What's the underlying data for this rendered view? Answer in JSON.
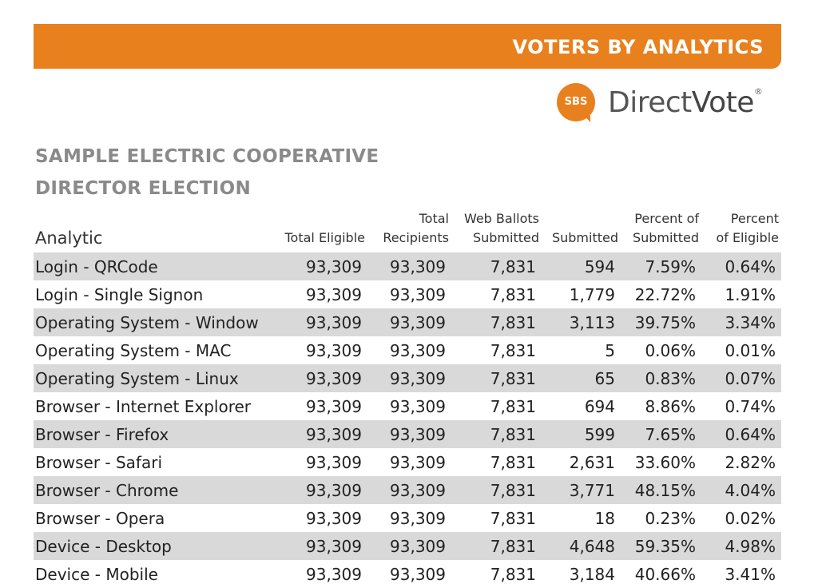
{
  "header": {
    "title": "VOTERS BY ANALYTICS",
    "brand_color": "#e8801e"
  },
  "logo": {
    "badge": "SBS",
    "name_light": "Direct",
    "name_bold": "Vote",
    "reg": "®"
  },
  "doc": {
    "title_line1": "SAMPLE ELECTRIC COOPERATIVE",
    "title_line2": "DIRECTOR ELECTION"
  },
  "table": {
    "columns": [
      {
        "line1": "",
        "line2": "Analytic"
      },
      {
        "line1": "",
        "line2": "Total Eligible"
      },
      {
        "line1": "Total",
        "line2": "Recipients"
      },
      {
        "line1": "Web Ballots",
        "line2": "Submitted"
      },
      {
        "line1": "",
        "line2": "Submitted"
      },
      {
        "line1": "Percent of",
        "line2": "Submitted"
      },
      {
        "line1": "Percent",
        "line2": "of Eligible"
      }
    ],
    "rows": [
      [
        "Login - QRCode",
        "93,309",
        "93,309",
        "7,831",
        "594",
        "7.59%",
        "0.64%"
      ],
      [
        "Login - Single Signon",
        "93,309",
        "93,309",
        "7,831",
        "1,779",
        "22.72%",
        "1.91%"
      ],
      [
        "Operating System - Window",
        "93,309",
        "93,309",
        "7,831",
        "3,113",
        "39.75%",
        "3.34%"
      ],
      [
        "Operating System - MAC",
        "93,309",
        "93,309",
        "7,831",
        "5",
        "0.06%",
        "0.01%"
      ],
      [
        "Operating System - Linux",
        "93,309",
        "93,309",
        "7,831",
        "65",
        "0.83%",
        "0.07%"
      ],
      [
        "Browser - Internet Explorer",
        "93,309",
        "93,309",
        "7,831",
        "694",
        "8.86%",
        "0.74%"
      ],
      [
        "Browser - Firefox",
        "93,309",
        "93,309",
        "7,831",
        "599",
        "7.65%",
        "0.64%"
      ],
      [
        "Browser - Safari",
        "93,309",
        "93,309",
        "7,831",
        "2,631",
        "33.60%",
        "2.82%"
      ],
      [
        "Browser - Chrome",
        "93,309",
        "93,309",
        "7,831",
        "3,771",
        "48.15%",
        "4.04%"
      ],
      [
        "Browser - Opera",
        "93,309",
        "93,309",
        "7,831",
        "18",
        "0.23%",
        "0.02%"
      ],
      [
        "Device - Desktop",
        "93,309",
        "93,309",
        "7,831",
        "4,648",
        "59.35%",
        "4.98%"
      ],
      [
        "Device - Mobile",
        "93,309",
        "93,309",
        "7,831",
        "3,184",
        "40.66%",
        "3.41%"
      ]
    ]
  }
}
